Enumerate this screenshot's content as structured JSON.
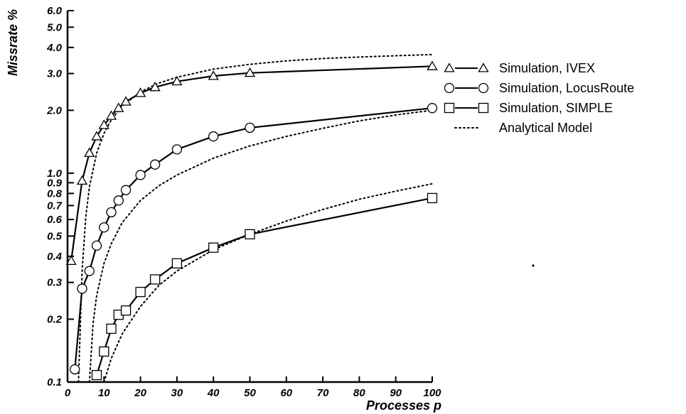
{
  "chart_data": {
    "type": "line",
    "title": "",
    "xlabel": "Processes p",
    "ylabel": "Missrate %",
    "x_scale": "linear",
    "y_scale": "log",
    "xlim": [
      0,
      100
    ],
    "ylim": [
      0.1,
      6.0
    ],
    "x_ticks": [
      0,
      10,
      20,
      30,
      40,
      50,
      60,
      70,
      80,
      90,
      100
    ],
    "x_tick_labels": [
      "0",
      "10",
      "20",
      "30",
      "40",
      "50",
      "60",
      "70",
      "80",
      "90",
      "100"
    ],
    "y_ticks": [
      0.1,
      0.2,
      0.3,
      0.4,
      0.5,
      0.6,
      0.7,
      0.8,
      0.9,
      1.0,
      2.0,
      3.0,
      4.0,
      5.0,
      6.0
    ],
    "y_tick_labels": [
      "0.1",
      "0.2",
      "0.3",
      "0.4",
      "0.5",
      "0.6",
      "0.7",
      "0.8",
      "0.9",
      "1.0",
      "2.0",
      "3.0",
      "4.0",
      "5.0",
      "6.0"
    ],
    "grid": false,
    "legend_position": "right",
    "series": [
      {
        "name": "Simulation, IVEX",
        "style": "solid",
        "marker": "triangle",
        "x": [
          1,
          4,
          6,
          8,
          10,
          12,
          14,
          16,
          20,
          24,
          30,
          40,
          50,
          100
        ],
        "y": [
          0.38,
          0.92,
          1.25,
          1.5,
          1.7,
          1.88,
          2.05,
          2.2,
          2.42,
          2.58,
          2.75,
          2.92,
          3.02,
          3.25
        ]
      },
      {
        "name": "Simulation, LocusRoute",
        "style": "solid",
        "marker": "circle",
        "x": [
          2,
          4,
          6,
          8,
          10,
          12,
          14,
          16,
          20,
          24,
          30,
          40,
          50,
          100
        ],
        "y": [
          0.115,
          0.28,
          0.34,
          0.45,
          0.55,
          0.65,
          0.74,
          0.83,
          0.98,
          1.1,
          1.3,
          1.5,
          1.65,
          2.05
        ]
      },
      {
        "name": "Simulation, SIMPLE",
        "style": "solid",
        "marker": "square",
        "x": [
          8,
          10,
          12,
          14,
          16,
          20,
          24,
          30,
          40,
          50,
          100
        ],
        "y": [
          0.108,
          0.14,
          0.18,
          0.21,
          0.22,
          0.27,
          0.31,
          0.37,
          0.44,
          0.51,
          0.76
        ]
      },
      {
        "name": "Analytical Model",
        "style": "dotted",
        "marker": "none",
        "curves": [
          {
            "x": [
              3,
              4,
              5,
              6,
              8,
              10,
              12,
              15,
              20,
              25,
              30,
              40,
              50,
              60,
              70,
              80,
              90,
              100
            ],
            "y": [
              0.1,
              0.34,
              0.62,
              0.86,
              1.25,
              1.55,
              1.8,
              2.1,
              2.45,
              2.7,
              2.88,
              3.15,
              3.32,
              3.45,
              3.54,
              3.6,
              3.65,
              3.7
            ]
          },
          {
            "x": [
              6,
              7,
              8,
              10,
              12,
              15,
              20,
              25,
              30,
              40,
              50,
              60,
              70,
              80,
              90,
              100
            ],
            "y": [
              0.1,
              0.19,
              0.26,
              0.37,
              0.46,
              0.58,
              0.74,
              0.87,
              0.98,
              1.18,
              1.35,
              1.5,
              1.64,
              1.78,
              1.9,
              2.0
            ]
          },
          {
            "x": [
              10,
              12,
              15,
              20,
              25,
              30,
              40,
              50,
              60,
              70,
              80,
              90,
              100
            ],
            "y": [
              0.1,
              0.13,
              0.17,
              0.23,
              0.29,
              0.34,
              0.43,
              0.51,
              0.59,
              0.67,
              0.75,
              0.82,
              0.89
            ]
          }
        ]
      }
    ]
  }
}
